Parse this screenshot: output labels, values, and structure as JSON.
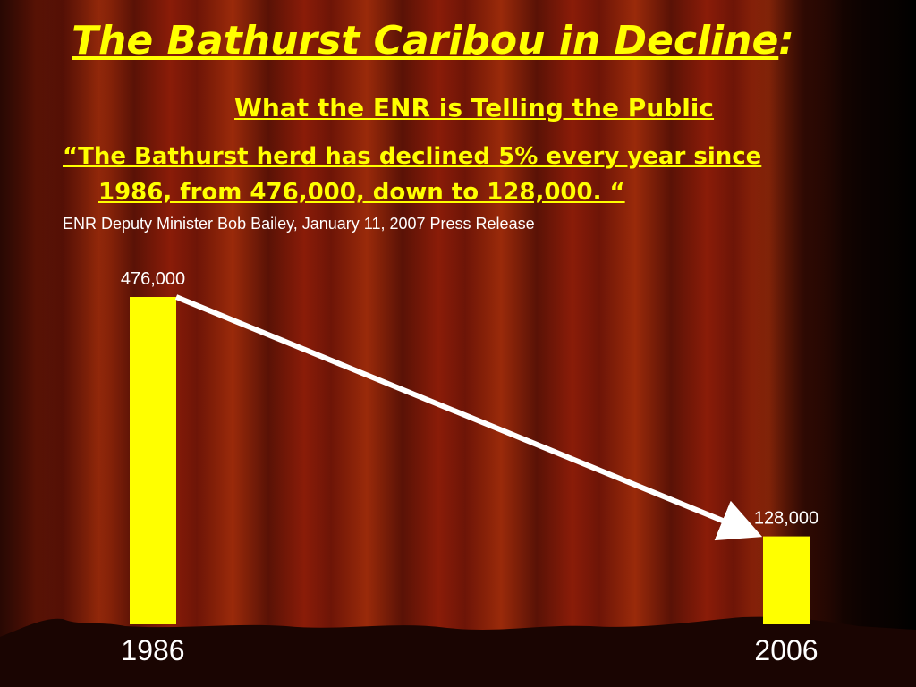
{
  "chart_data": {
    "type": "bar",
    "title": "The Bathurst Caribou in Decline",
    "title_suffix": ":",
    "subtitle": "What the ENR is Telling the Public",
    "quote": "“The Bathurst herd has declined 5% every year since 1986, from 476,000, down to 128,000. “",
    "source": "ENR Deputy Minister Bob Bailey, January 11, 2007 Press Release",
    "categories": [
      "1986",
      "2006"
    ],
    "values": [
      476000,
      128000
    ],
    "value_labels": [
      "476,000",
      "128,000"
    ],
    "color": "#ffff00",
    "arrow_color": "#ffffff"
  }
}
